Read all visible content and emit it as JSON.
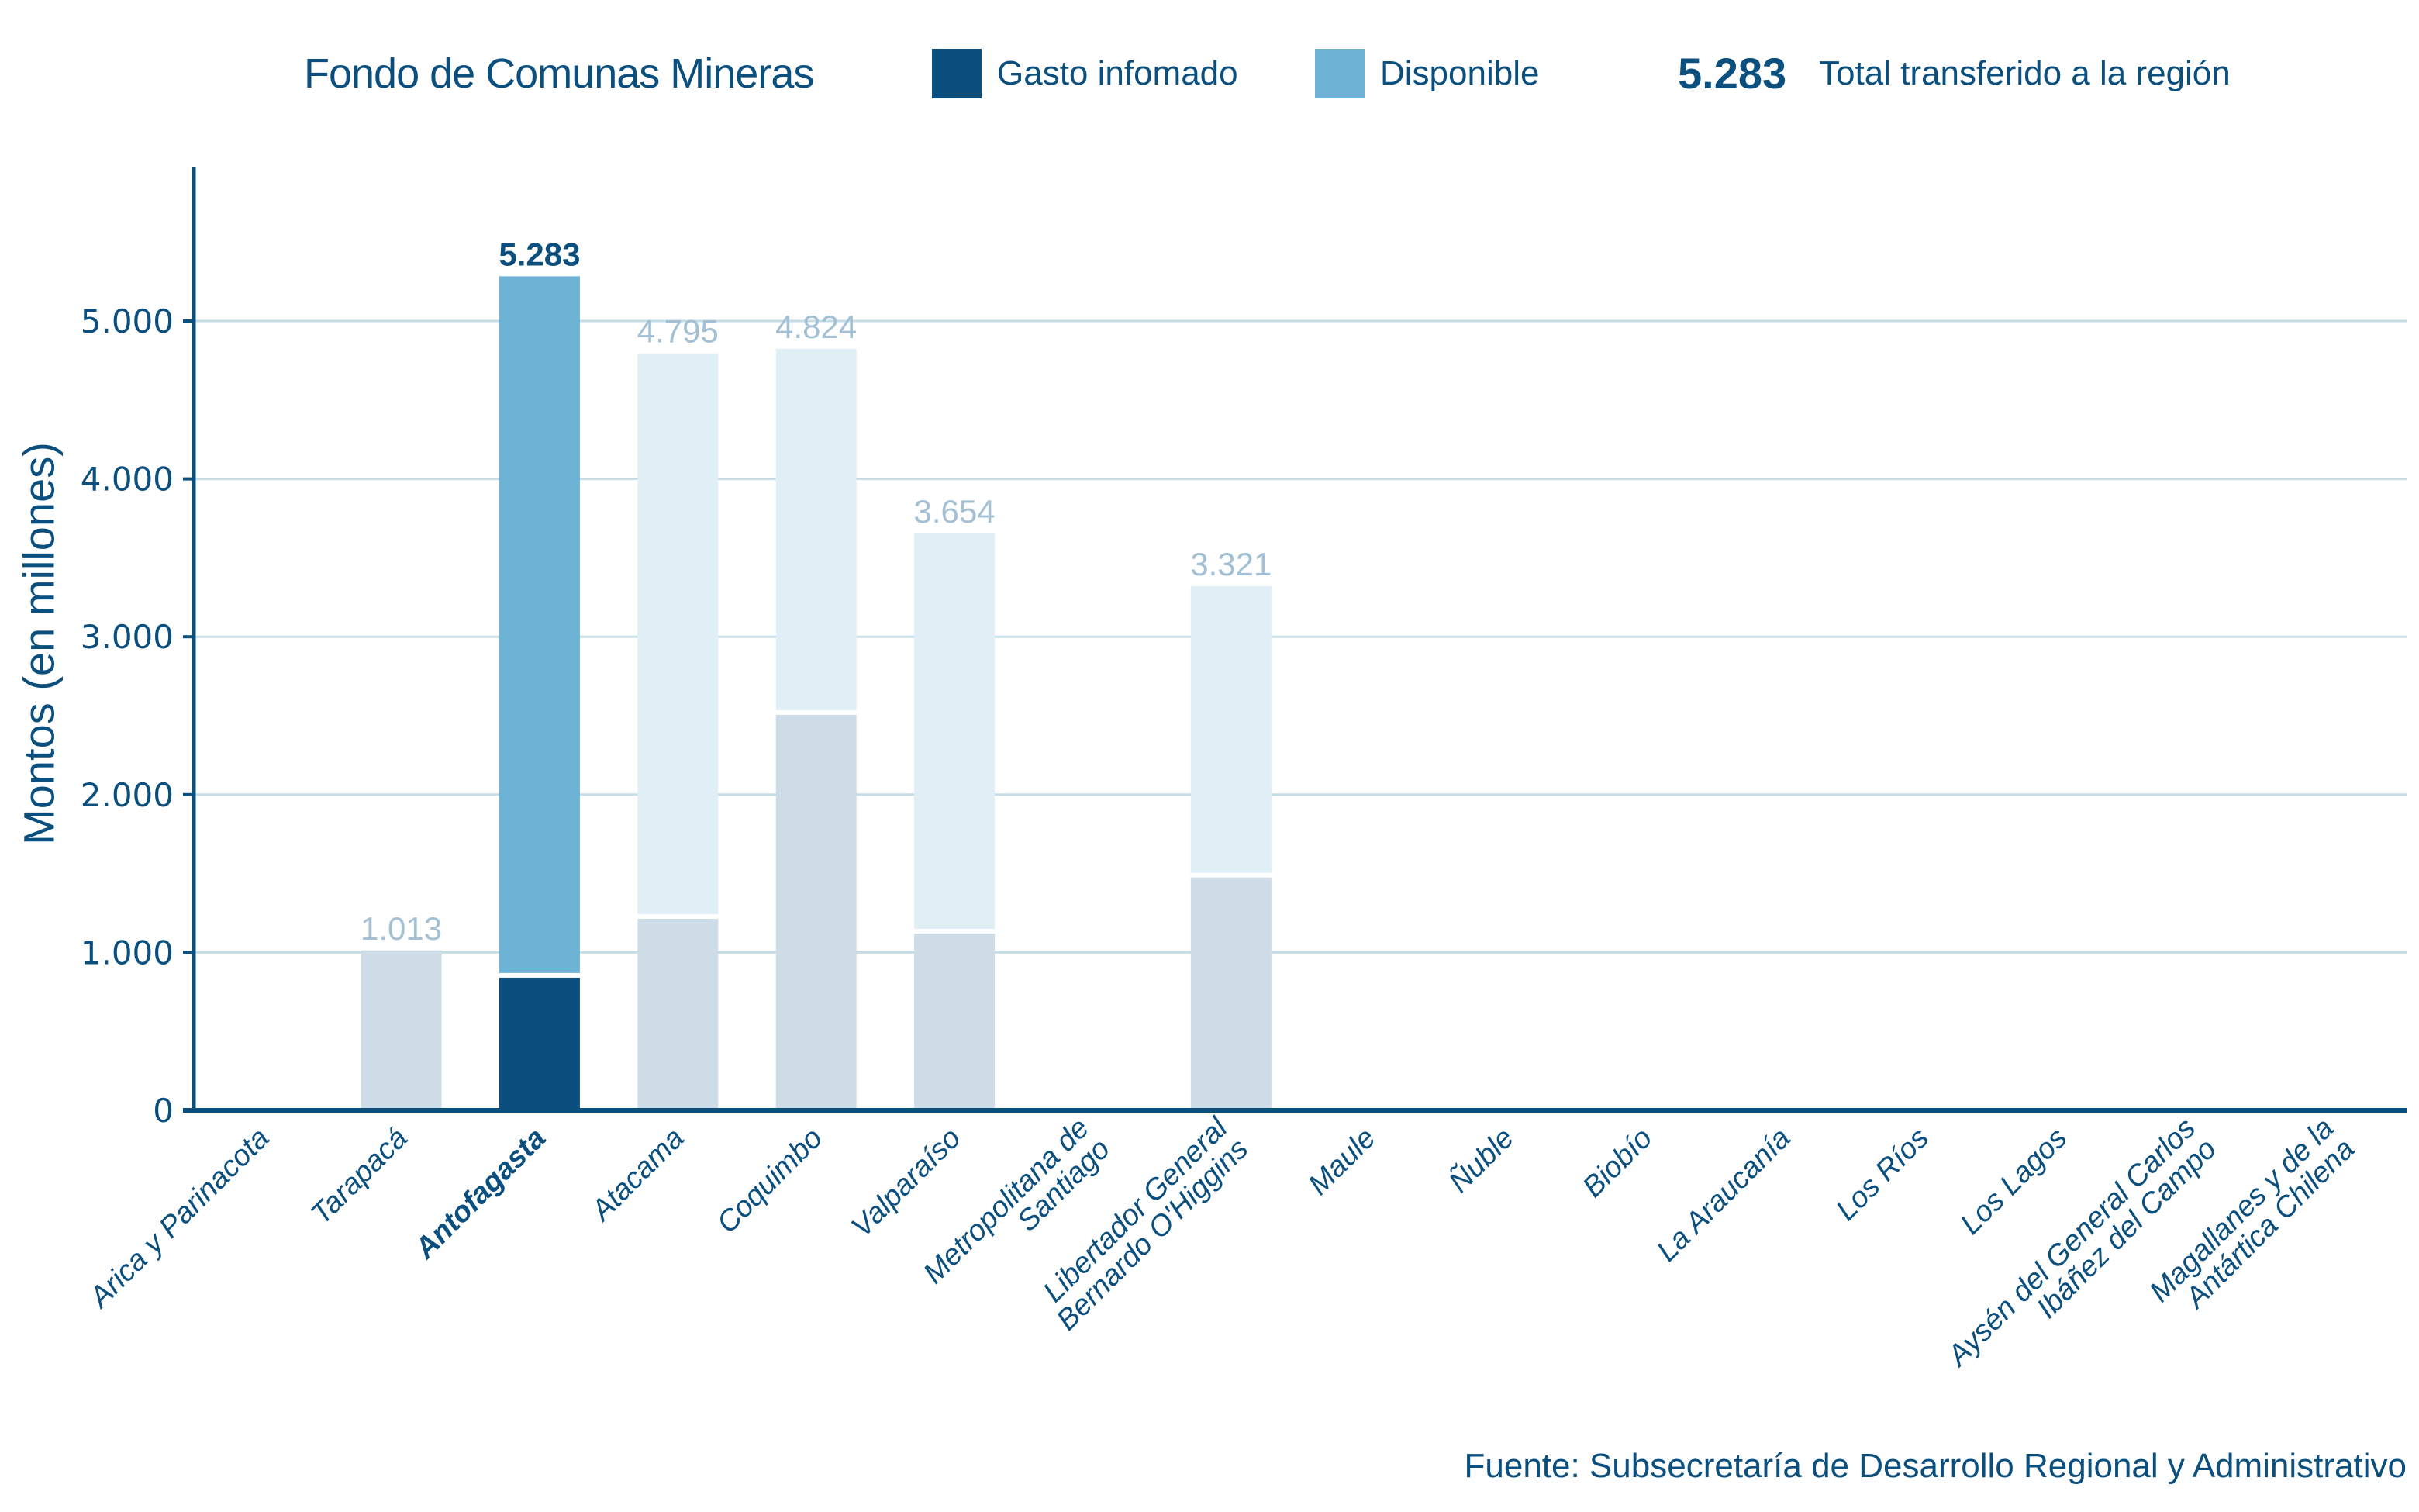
{
  "legend": {
    "title": "Fondo de Comunas Mineras",
    "series_labels": [
      "Gasto infomado",
      "Disponible"
    ],
    "total_value": "5.283",
    "total_label": "Total transferido a la región"
  },
  "colors": {
    "primary": "#0b4f7f",
    "gasto_highlight": "#0b4f7f",
    "disponible_highlight": "#6db3d5",
    "gasto_muted": "#cddce6",
    "disponible_muted": "#e0eef5",
    "muted_label": "#a3c0d4",
    "grid": "#c4dde7"
  },
  "source": "Fuente: Subsecretaría de Desarrollo Regional y Administrativo",
  "chart_data": {
    "type": "bar",
    "stacked": true,
    "title": "Fondo de Comunas Mineras",
    "xlabel": "",
    "ylabel": "Montos (en millones)",
    "ylim": [
      0,
      5900
    ],
    "yticks": [
      0,
      1000,
      2000,
      3000,
      4000,
      5000
    ],
    "ytick_labels": [
      "0",
      "1.000",
      "2.000",
      "3.000",
      "4.000",
      "5.000"
    ],
    "grid": true,
    "legend_position": "top",
    "highlighted_category": "Antofagasta",
    "categories": [
      [
        "Arica y Parinacota"
      ],
      [
        "Tarapacá"
      ],
      [
        "Antofagasta"
      ],
      [
        "Atacama"
      ],
      [
        "Coquimbo"
      ],
      [
        "Valparaíso"
      ],
      [
        "Metropolitana de",
        "Santiago"
      ],
      [
        "Libertador General",
        "Bernardo O'Higgins"
      ],
      [
        "Maule"
      ],
      [
        "Ñuble"
      ],
      [
        "Biobío"
      ],
      [
        "La Araucanía"
      ],
      [
        "Los Ríos"
      ],
      [
        "Los Lagos"
      ],
      [
        "Aysén del General Carlos",
        "Ibáñez del Campo"
      ],
      [
        "Magallanes y de la",
        "Antártica Chilena"
      ]
    ],
    "series": [
      {
        "name": "Gasto infomado",
        "values": [
          0,
          1013,
          855,
          1228,
          2520,
          1135,
          0,
          1490,
          0,
          0,
          0,
          0,
          0,
          0,
          0,
          0
        ]
      },
      {
        "name": "Disponible",
        "values": [
          0,
          0,
          4428,
          3567,
          2304,
          2519,
          0,
          1831,
          0,
          0,
          0,
          0,
          0,
          0,
          0,
          0
        ]
      }
    ],
    "totals": [
      0,
      1013,
      5283,
      4795,
      4824,
      3654,
      0,
      3321,
      0,
      0,
      0,
      0,
      0,
      0,
      0,
      0
    ],
    "total_labels": [
      "",
      "1.013",
      "5.283",
      "4.795",
      "4.824",
      "3.654",
      "",
      "3.321",
      "",
      "",
      "",
      "",
      "",
      "",
      "",
      ""
    ]
  }
}
